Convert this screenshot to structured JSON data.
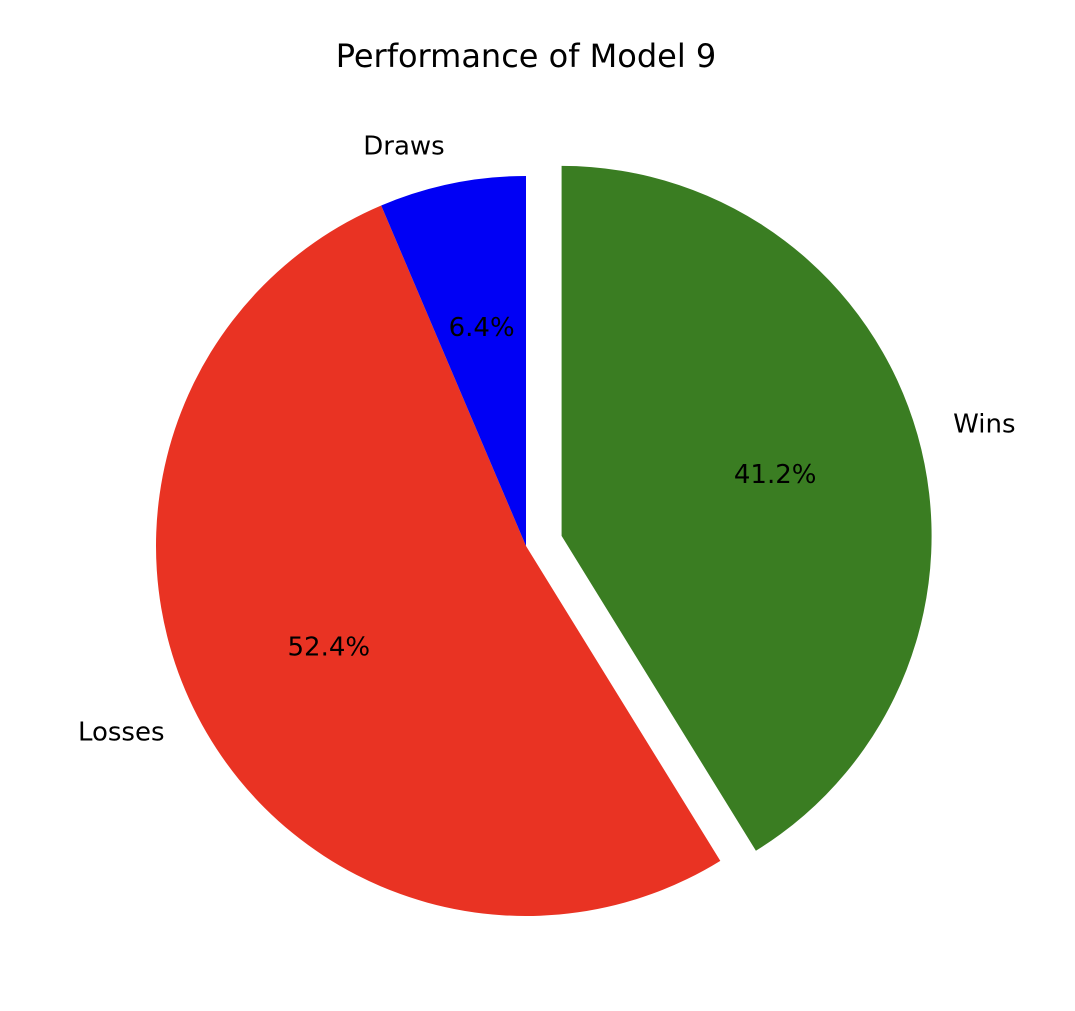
{
  "chart_data": {
    "type": "pie",
    "title": "Performance of Model 9",
    "start_angle_deg": 90,
    "direction": "clockwise",
    "slices": [
      {
        "label": "Wins",
        "value": 41.2,
        "pct_label": "41.2%",
        "color": "#3a7d22",
        "explode": 0.1
      },
      {
        "label": "Losses",
        "value": 52.4,
        "pct_label": "52.4%",
        "color": "#e93323",
        "explode": 0
      },
      {
        "label": "Draws",
        "value": 6.4,
        "pct_label": "6.4%",
        "color": "#0000f5",
        "explode": 0
      }
    ],
    "legend": "none"
  }
}
